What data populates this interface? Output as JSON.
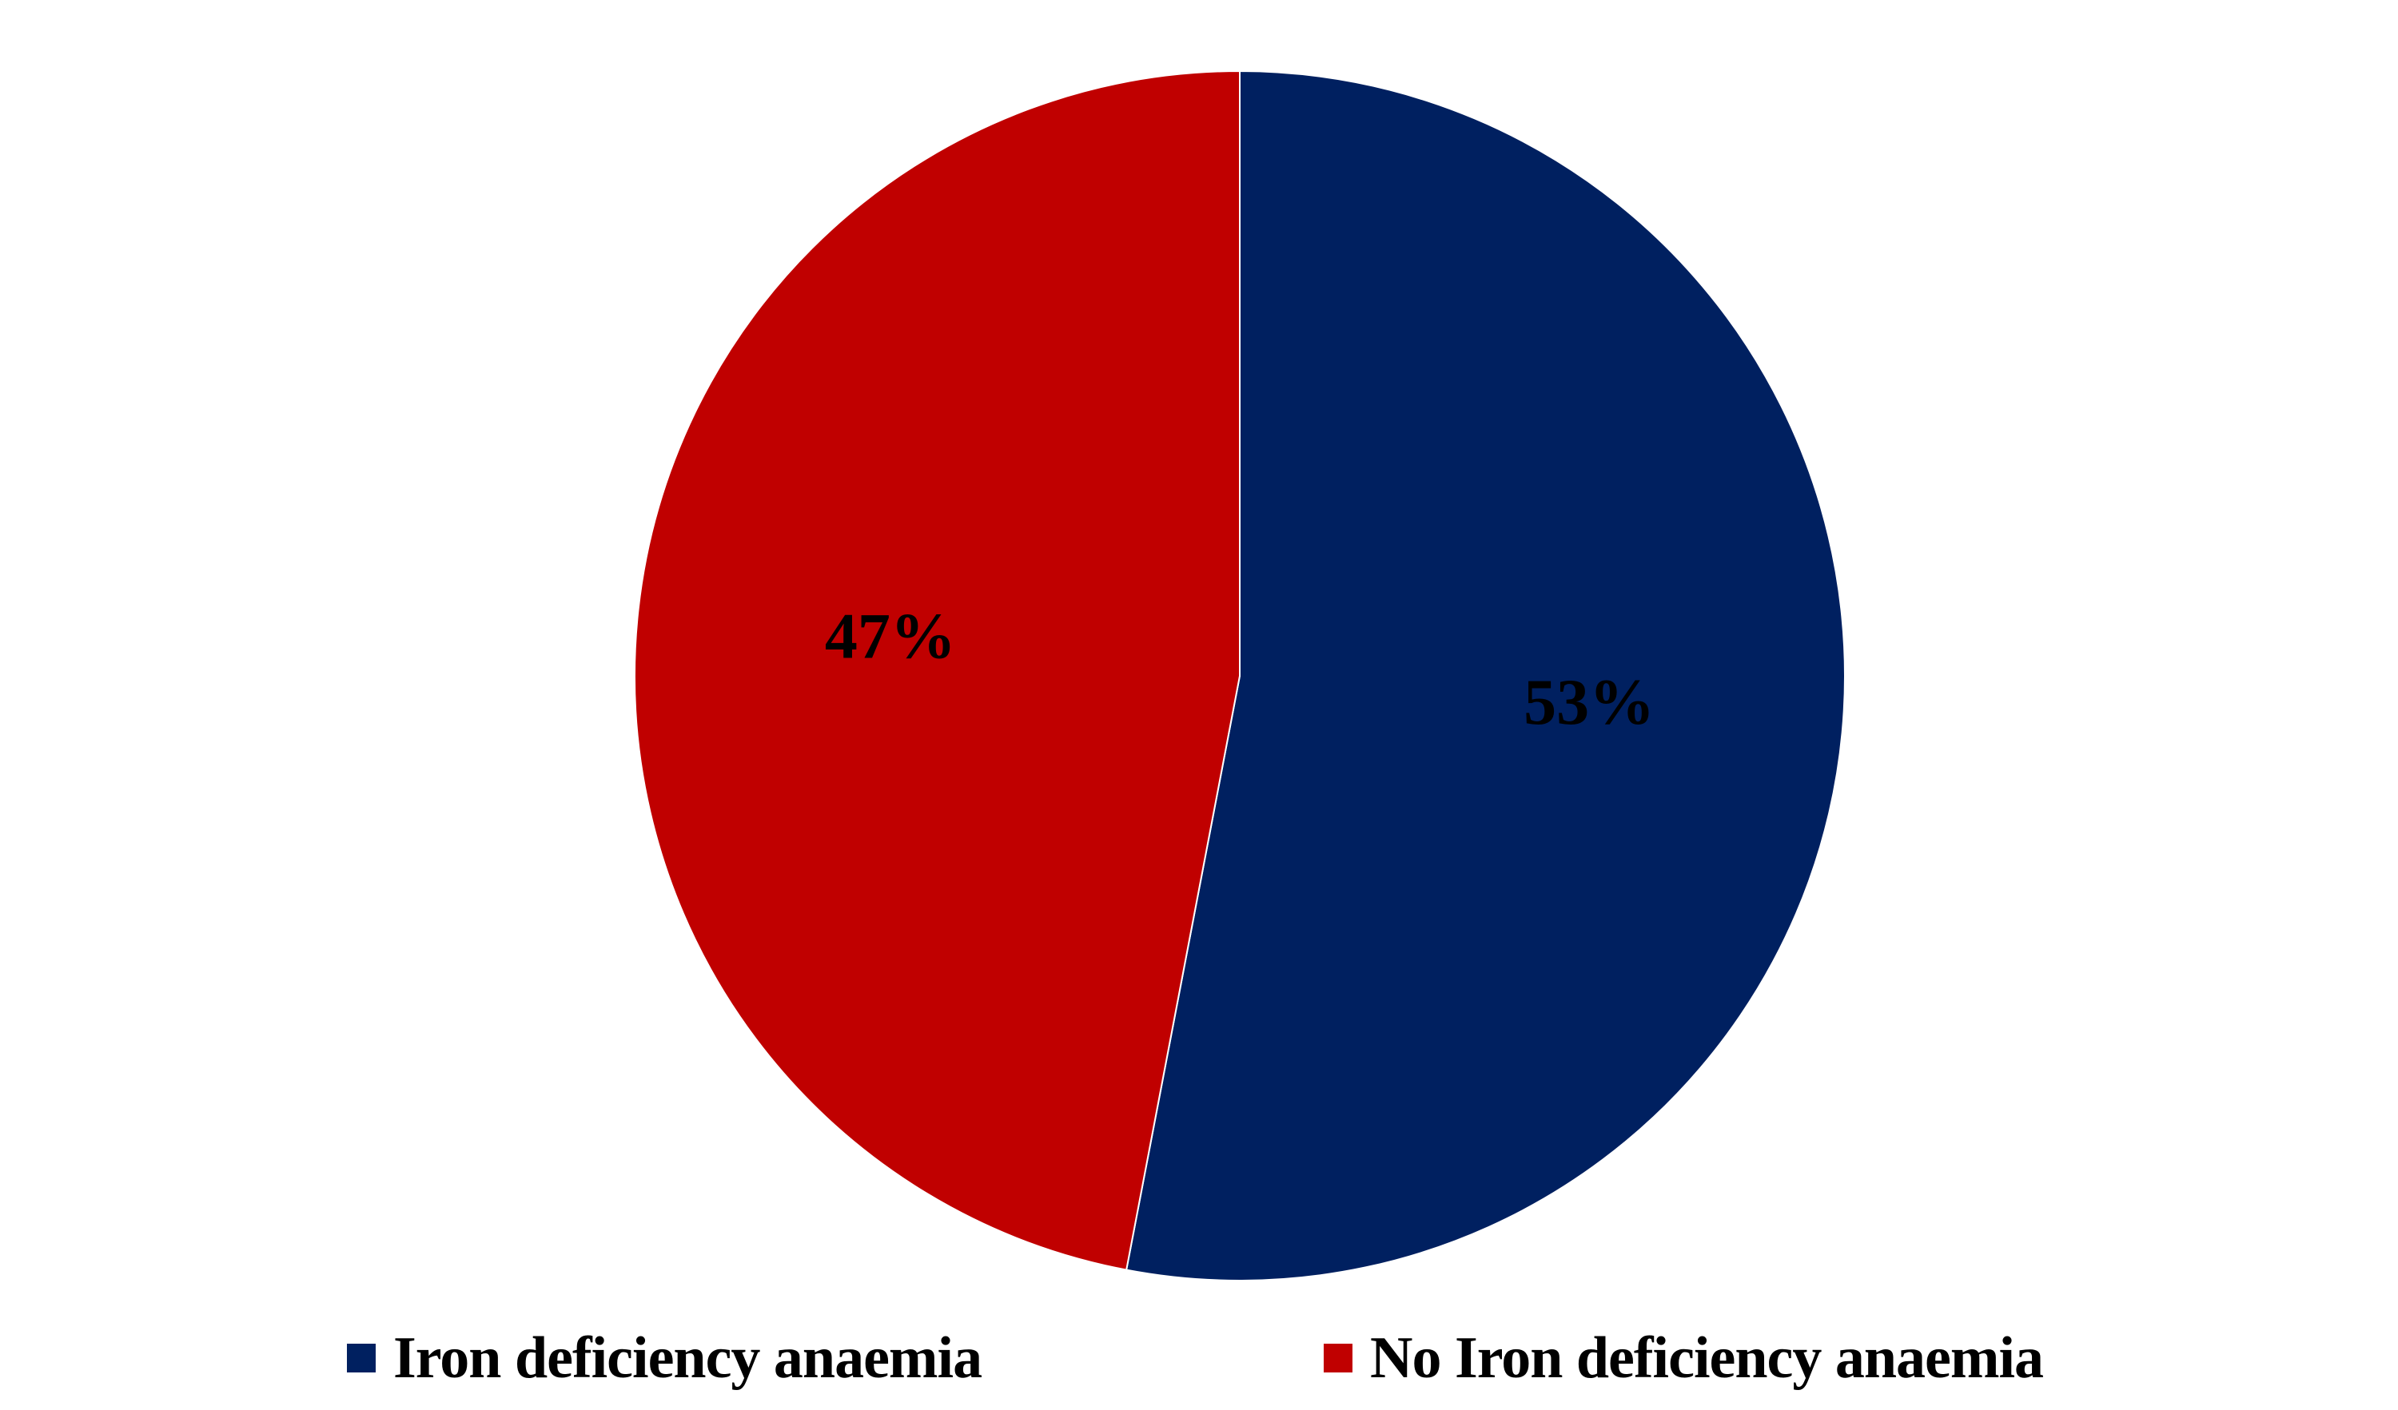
{
  "chart_data": {
    "type": "pie",
    "title": "",
    "slices": [
      {
        "label": "Iron deficiency anaemia",
        "value": 53,
        "display": "53%",
        "color": "#002060"
      },
      {
        "label": "No Iron deficiency anaemia",
        "value": 47,
        "display": "47%",
        "color": "#C00000"
      }
    ],
    "start_angle": "12 o'clock",
    "direction": "clockwise",
    "legend": {
      "position": "bottom"
    },
    "slice_border_color": "#ffffff"
  }
}
